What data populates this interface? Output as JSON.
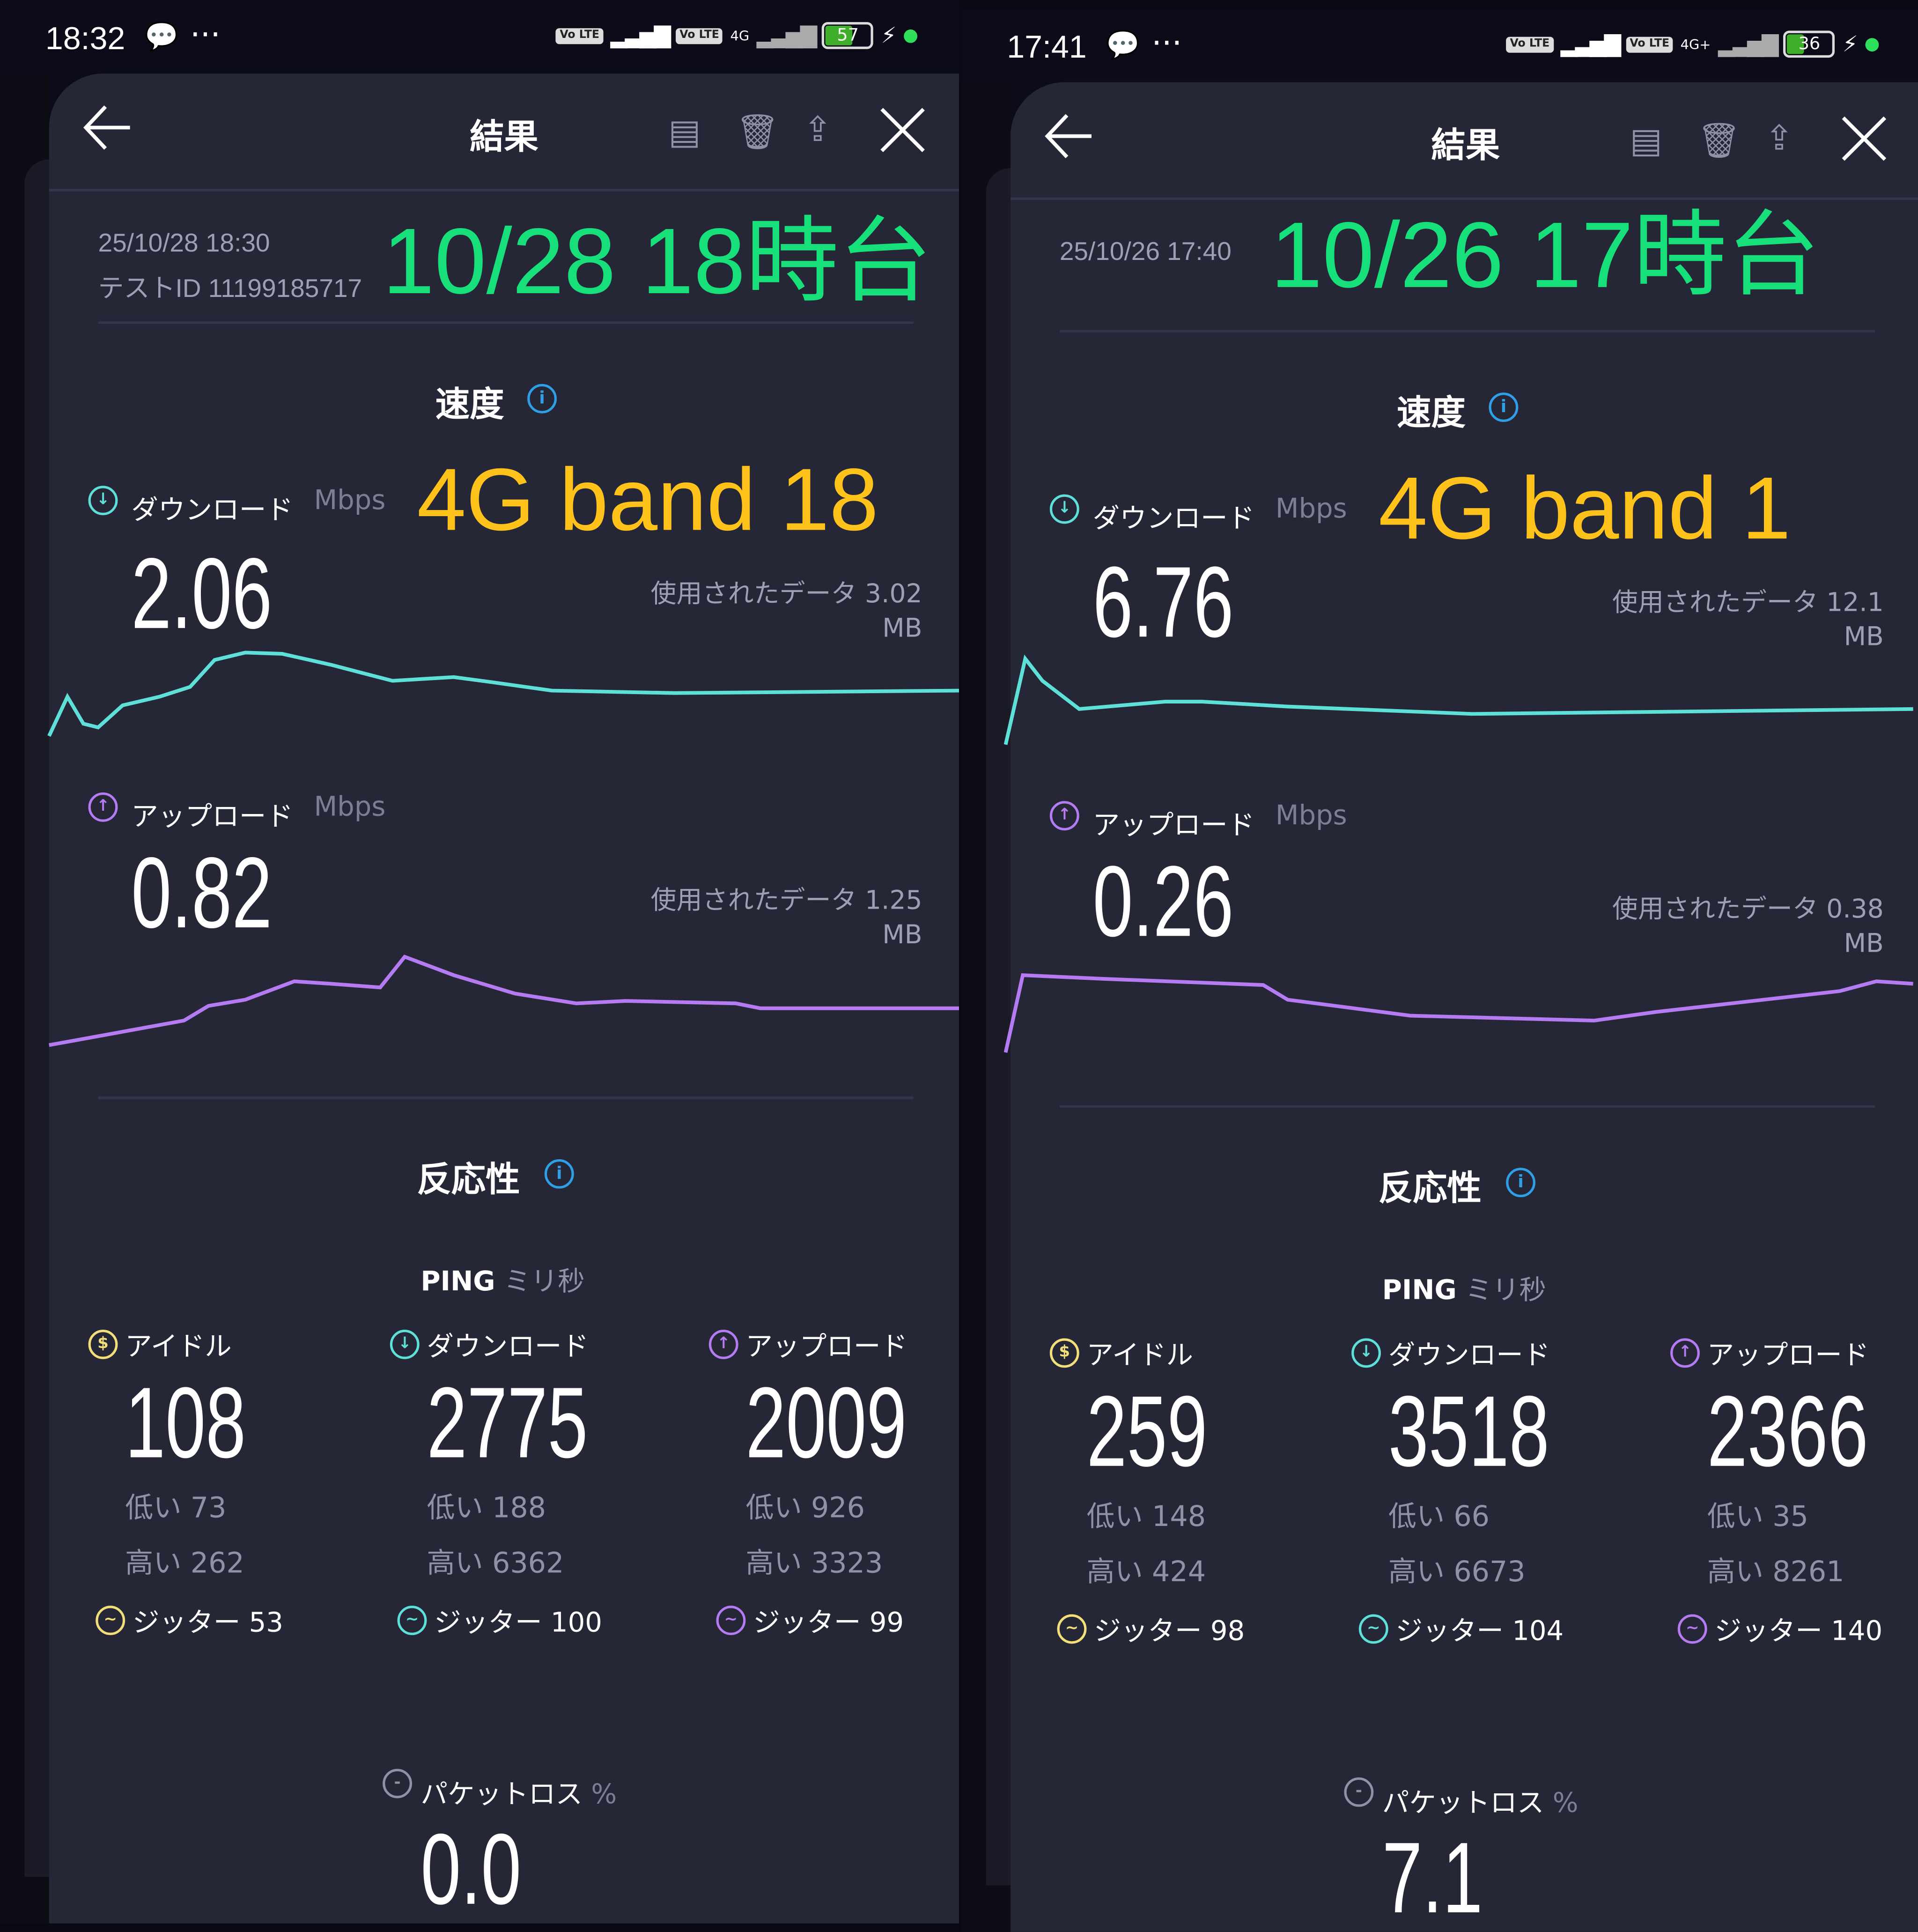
{
  "colors": {
    "background": "#252636",
    "download": "#5ee0d8",
    "upload": "#b57bf2",
    "idle": "#f3df7a",
    "info": "#2f9fe6",
    "overlay_green": "#17e07a",
    "overlay_yellow": "#ffc21a"
  },
  "panels": [
    {
      "status": {
        "time": "18:32",
        "more": "···",
        "volte1": "Vo LTE",
        "volte2": "Vo LTE",
        "network": "4G",
        "battery": "57",
        "battery_level": 57
      },
      "header": {
        "title": "結果",
        "back_icon": "arrow-left-icon",
        "close_icon": "close-icon"
      },
      "meta": {
        "date": "25/10/28 18:30",
        "test_id": "テストID 11199185717"
      },
      "overlay": {
        "time_label": "10/28 18時台",
        "band_label": "4G band 18"
      },
      "speed": {
        "title": "速度",
        "download": {
          "label": "ダウンロード",
          "unit": "Mbps",
          "value": "2.06",
          "used": "使用されたデータ 3.02",
          "used_unit": "MB"
        },
        "upload": {
          "label": "アップロード",
          "unit": "Mbps",
          "value": "0.82",
          "used": "使用されたデータ 1.25",
          "used_unit": "MB"
        }
      },
      "responsiveness": {
        "title": "反応性",
        "ping_label": "PING",
        "ping_unit": "ミリ秒",
        "columns": [
          {
            "label": "アイドル",
            "value": "108",
            "low": "低い 73",
            "high": "高い 262",
            "jitter": "ジッター 53"
          },
          {
            "label": "ダウンロード",
            "value": "2775",
            "low": "低い 188",
            "high": "高い 6362",
            "jitter": "ジッター 100"
          },
          {
            "label": "アップロード",
            "value": "2009",
            "low": "低い 926",
            "high": "高い 3323",
            "jitter": "ジッター 99"
          }
        ]
      },
      "packet_loss": {
        "label": "パケットロス",
        "unit": "%",
        "value": "0.0"
      }
    },
    {
      "status": {
        "time": "17:41",
        "more": "···",
        "volte1": "Vo LTE",
        "volte2": "Vo LTE",
        "network": "4G+",
        "battery": "36",
        "battery_level": 36
      },
      "header": {
        "title": "結果",
        "back_icon": "arrow-left-icon",
        "close_icon": "close-icon"
      },
      "meta": {
        "date": "25/10/26 17:40",
        "test_id": ""
      },
      "overlay": {
        "time_label": "10/26 17時台",
        "band_label": "4G band 1"
      },
      "speed": {
        "title": "速度",
        "download": {
          "label": "ダウンロード",
          "unit": "Mbps",
          "value": "6.76",
          "used": "使用されたデータ 12.1",
          "used_unit": "MB"
        },
        "upload": {
          "label": "アップロード",
          "unit": "Mbps",
          "value": "0.26",
          "used": "使用されたデータ 0.38",
          "used_unit": "MB"
        }
      },
      "responsiveness": {
        "title": "反応性",
        "ping_label": "PING",
        "ping_unit": "ミリ秒",
        "columns": [
          {
            "label": "アイドル",
            "value": "259",
            "low": "低い 148",
            "high": "高い 424",
            "jitter": "ジッター 98"
          },
          {
            "label": "ダウンロード",
            "value": "3518",
            "low": "低い 66",
            "high": "高い 6673",
            "jitter": "ジッター 104"
          },
          {
            "label": "アップロード",
            "value": "2366",
            "low": "低い 35",
            "high": "高い 8261",
            "jitter": "ジッター 140"
          }
        ]
      },
      "packet_loss": {
        "label": "パケットロス",
        "unit": "%",
        "value": "7.1"
      }
    }
  ]
}
